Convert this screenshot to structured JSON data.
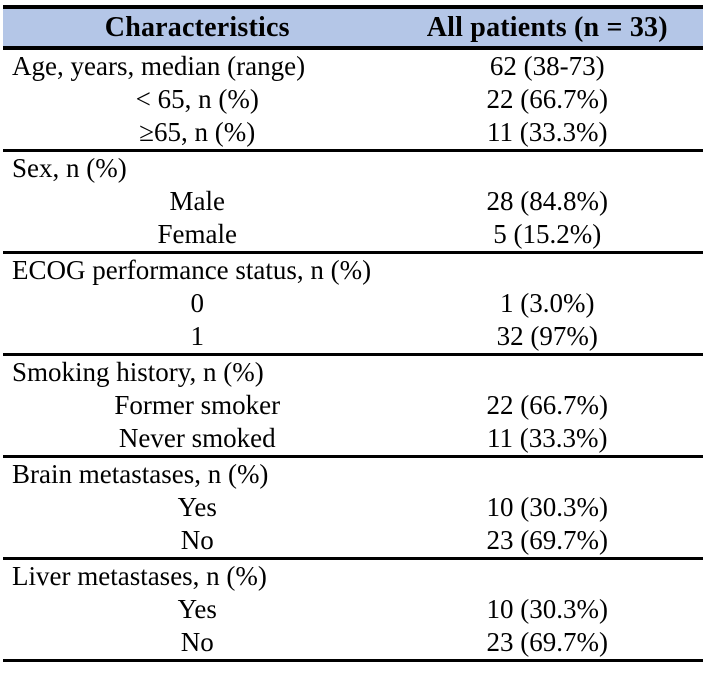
{
  "table": {
    "columns": [
      "Characteristics",
      "All patients (n = 33)"
    ],
    "colors": {
      "header_bg": "#b4c6e7",
      "border": "#000000",
      "text": "#000000"
    },
    "sections": [
      {
        "name": "age",
        "rows": [
          {
            "label": "Age, years, median (range)",
            "value": "62 (38-73)"
          },
          {
            "label": "< 65, n (%)",
            "value": "22 (66.7%)"
          },
          {
            "label": "≥65, n (%)",
            "value": "11 (33.3%)"
          }
        ]
      },
      {
        "name": "sex",
        "rows": [
          {
            "label": "Sex, n (%)",
            "value": ""
          },
          {
            "label": "Male",
            "value": "28 (84.8%)"
          },
          {
            "label": "Female",
            "value": "5 (15.2%)"
          }
        ]
      },
      {
        "name": "ecog",
        "rows": [
          {
            "label": "ECOG performance status, n (%)",
            "value": ""
          },
          {
            "label": "0",
            "value": "1 (3.0%)"
          },
          {
            "label": "1",
            "value": "32 (97%)"
          }
        ]
      },
      {
        "name": "smoking",
        "rows": [
          {
            "label": "Smoking history, n (%)",
            "value": ""
          },
          {
            "label": "Former smoker",
            "value": "22 (66.7%)"
          },
          {
            "label": "Never smoked",
            "value": "11 (33.3%)"
          }
        ]
      },
      {
        "name": "brain-metastases",
        "rows": [
          {
            "label": "Brain metastases, n (%)",
            "value": ""
          },
          {
            "label": "Yes",
            "value": "10 (30.3%)"
          },
          {
            "label": "No",
            "value": "23 (69.7%)"
          }
        ]
      },
      {
        "name": "liver-metastases",
        "rows": [
          {
            "label": "Liver metastases, n (%)",
            "value": ""
          },
          {
            "label": "Yes",
            "value": "10 (30.3%)"
          },
          {
            "label": "No",
            "value": "23 (69.7%)"
          }
        ]
      }
    ]
  }
}
